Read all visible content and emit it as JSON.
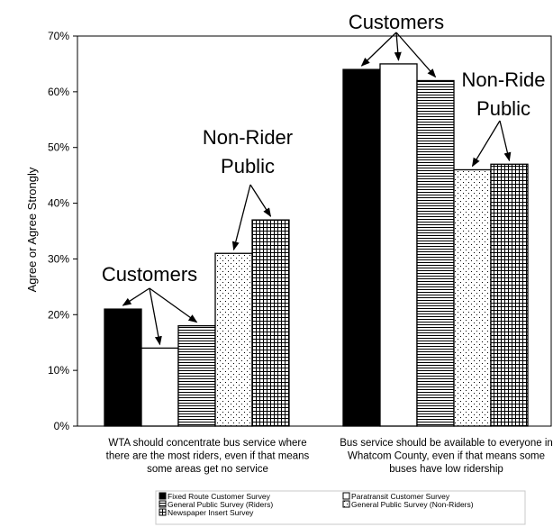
{
  "chart_data": {
    "type": "bar",
    "title": "",
    "xlabel": "",
    "ylabel": "Agree or Agree Strongly",
    "ylim": [
      0,
      70
    ],
    "yticks": [
      "0%",
      "10%",
      "20%",
      "30%",
      "40%",
      "50%",
      "60%",
      "70%"
    ],
    "y_unit": "%",
    "grid": false,
    "legend_position": "bottom",
    "categories": [
      [
        "WTA should concentrate bus service where",
        "there are the most riders, even if that means",
        "some areas get no service"
      ],
      [
        "Bus service should be available to everyone in",
        "Whatcom County, even if that means some",
        "buses have low ridership"
      ]
    ],
    "series": [
      {
        "name": "Fixed Route Customer Survey",
        "values": [
          21,
          64
        ],
        "pattern": "solid-black"
      },
      {
        "name": "Paratransit Customer Survey",
        "values": [
          14,
          65
        ],
        "pattern": "white"
      },
      {
        "name": "General Public Survey (Riders)",
        "values": [
          18,
          62
        ],
        "pattern": "fine-stripes"
      },
      {
        "name": "General Public Survey (Non-Riders)",
        "values": [
          31,
          46
        ],
        "pattern": "dots"
      },
      {
        "name": "Newspaper Insert Survey",
        "values": [
          37,
          47
        ],
        "pattern": "grid"
      }
    ],
    "legend_order": [
      0,
      1,
      2,
      3,
      4
    ],
    "annotations": [
      {
        "text": "Customers",
        "group": 0,
        "targets": [
          0,
          1,
          2
        ]
      },
      {
        "text": "Non-Rider Public",
        "lines": [
          "Non-Rider",
          "Public"
        ],
        "group": 0,
        "targets": [
          3,
          4
        ]
      },
      {
        "text": "Customers",
        "group": 1,
        "targets": [
          0,
          1,
          2
        ]
      },
      {
        "text": "Non-Ride Public",
        "lines": [
          "Non-Ride",
          "Public"
        ],
        "group": 1,
        "targets": [
          3,
          4
        ]
      }
    ]
  }
}
